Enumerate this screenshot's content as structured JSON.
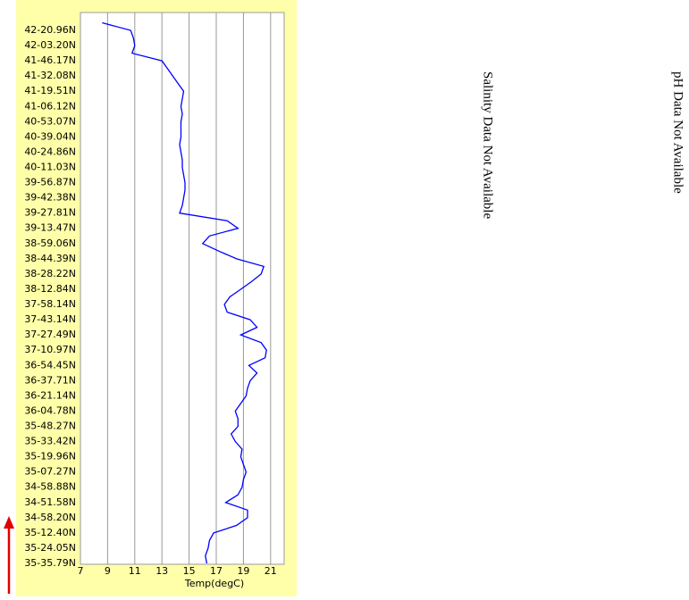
{
  "chart_data": {
    "type": "line",
    "color": "#0000ff",
    "grid": true,
    "xlabel": "Temp(degC)",
    "xlim": [
      7,
      22
    ],
    "xticks": [
      7,
      9,
      11,
      13,
      15,
      17,
      19,
      21
    ],
    "annotations": [
      "Salinity Data Not Available",
      "pH Data Not Available"
    ],
    "categories": [
      null,
      "42-20.96N",
      null,
      "42-03.20N",
      null,
      "41-46.17N",
      null,
      "41-32.08N",
      null,
      "41-19.51N",
      null,
      "41-06.12N",
      null,
      "40-53.07N",
      null,
      "40-39.04N",
      null,
      "40-24.86N",
      null,
      "40-11.03N",
      null,
      "39-56.87N",
      null,
      "39-42.38N",
      null,
      "39-27.81N",
      null,
      "39-13.47N",
      null,
      "38-59.06N",
      null,
      "38-44.39N",
      null,
      "38-28.22N",
      null,
      "38-12.84N",
      null,
      "37-58.14N",
      null,
      "37-43.14N",
      null,
      "37-27.49N",
      null,
      "37-10.97N",
      null,
      "36-54.45N",
      null,
      "36-37.71N",
      null,
      "36-21.14N",
      null,
      "36-04.78N",
      null,
      "35-48.27N",
      null,
      "35-33.42N",
      null,
      "35-19.96N",
      null,
      "35-07.27N",
      null,
      "34-58.88N",
      null,
      "34-51.58N",
      null,
      "34-58.20N",
      null,
      "35-12.40N",
      null,
      "35-24.05N",
      null,
      "35-35.79N"
    ],
    "values": [
      8.6,
      10.7,
      10.9,
      11.0,
      10.8,
      13.0,
      13.4,
      13.8,
      14.2,
      14.6,
      14.5,
      14.4,
      14.5,
      14.4,
      14.4,
      14.4,
      14.3,
      14.4,
      14.5,
      14.5,
      14.6,
      14.7,
      14.7,
      14.6,
      14.5,
      14.3,
      17.8,
      18.6,
      16.5,
      16.0,
      17.2,
      18.5,
      20.5,
      20.3,
      19.6,
      18.8,
      18.0,
      17.6,
      17.8,
      19.5,
      20.0,
      18.8,
      20.3,
      20.7,
      20.6,
      19.4,
      20.0,
      19.5,
      19.3,
      19.2,
      18.8,
      18.4,
      18.6,
      18.6,
      18.1,
      18.4,
      18.9,
      18.8,
      19.0,
      19.2,
      19.0,
      18.9,
      18.6,
      17.7,
      19.3,
      19.3,
      18.5,
      16.8,
      16.5,
      16.4,
      16.2,
      16.3
    ]
  }
}
